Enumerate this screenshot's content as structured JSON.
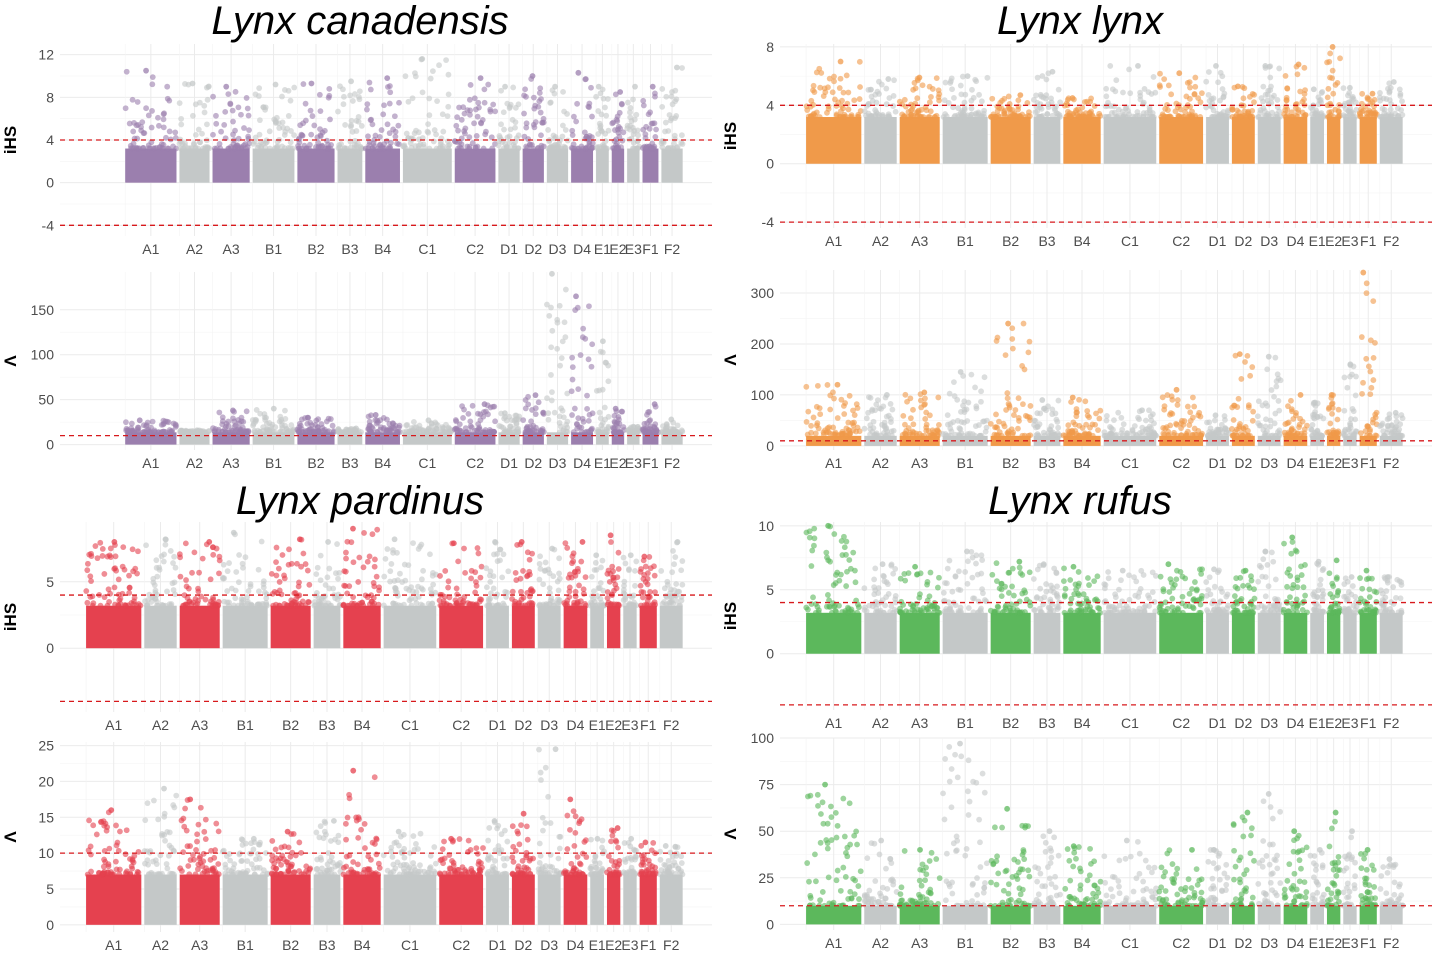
{
  "species": [
    {
      "id": "canadensis",
      "title": "Lynx canadensis",
      "color": "#9b7fae"
    },
    {
      "id": "lynx",
      "title": "Lynx lynx",
      "color": "#f09a4a"
    },
    {
      "id": "pardinus",
      "title": "Lynx pardinus",
      "color": "#e5414f"
    },
    {
      "id": "rufus",
      "title": "Lynx rufus",
      "color": "#5cb85c"
    }
  ],
  "colors": {
    "alternate": "#c4c8c8",
    "threshold": "#d7191c",
    "grid": "#ebebeb"
  },
  "chart_data": [
    {
      "type": "scatter",
      "species": "Lynx canadensis",
      "ylabel": "iHS",
      "xtick_labels": [
        "A1",
        "A2",
        "A3",
        "B1",
        "B2",
        "B3",
        "B4",
        "C1",
        "C2",
        "D1",
        "D2",
        "D3",
        "D4",
        "E1",
        "E2",
        "E3",
        "F1",
        "F2"
      ],
      "ylim": [
        -5,
        13
      ],
      "yticks": [
        -4,
        0,
        4,
        8,
        12
      ],
      "thresholds": [
        4,
        -4
      ],
      "chrom_max": [
        10.5,
        9.3,
        9.0,
        9.2,
        9.3,
        9.5,
        9.8,
        11.6,
        9.8,
        9.0,
        10.0,
        9.0,
        10.3,
        9.0,
        8.5,
        9.0,
        9.0,
        10.8
      ],
      "grid": true
    },
    {
      "type": "scatter",
      "species": "Lynx canadensis",
      "ylabel": "Λ",
      "xtick_labels": [
        "A1",
        "A2",
        "A3",
        "B1",
        "B2",
        "B3",
        "B4",
        "C1",
        "C2",
        "D1",
        "D2",
        "D3",
        "D4",
        "E1",
        "E2",
        "E3",
        "F1",
        "F2"
      ],
      "ylim": [
        -6,
        192
      ],
      "yticks": [
        0,
        50,
        100,
        150
      ],
      "thresholds": [
        10
      ],
      "chrom_max": [
        27,
        16,
        38,
        40,
        30,
        18,
        33,
        27,
        45,
        35,
        55,
        190,
        165,
        115,
        40,
        20,
        45,
        28
      ],
      "grid": true
    },
    {
      "type": "scatter",
      "species": "Lynx lynx",
      "ylabel": "iHS",
      "xtick_labels": [
        "A1",
        "A2",
        "A3",
        "B1",
        "B2",
        "B3",
        "B4",
        "C1",
        "C2",
        "D1",
        "D2",
        "D3",
        "D4",
        "E1",
        "E2",
        "E3",
        "F1",
        "F2"
      ],
      "ylim": [
        -4.4,
        8.2
      ],
      "yticks": [
        -4,
        0,
        4,
        8
      ],
      "thresholds": [
        4,
        -4
      ],
      "chrom_max": [
        7.0,
        5.8,
        5.9,
        6.0,
        4.7,
        6.3,
        4.5,
        6.7,
        6.2,
        6.7,
        5.3,
        6.7,
        6.8,
        5.1,
        8.0,
        5.2,
        4.8,
        5.6
      ],
      "grid": true
    },
    {
      "type": "scatter",
      "species": "Lynx lynx",
      "ylabel": "Λ",
      "xtick_labels": [
        "A1",
        "A2",
        "A3",
        "B1",
        "B2",
        "B3",
        "B4",
        "C1",
        "C2",
        "D1",
        "D2",
        "D3",
        "D4",
        "E1",
        "E2",
        "E3",
        "F1",
        "F2"
      ],
      "ylim": [
        -8,
        345
      ],
      "yticks": [
        0,
        100,
        200,
        300
      ],
      "thresholds": [
        10
      ],
      "chrom_max": [
        120,
        100,
        105,
        145,
        240,
        90,
        95,
        70,
        110,
        60,
        180,
        175,
        100,
        85,
        100,
        160,
        340,
        65
      ],
      "grid": true
    },
    {
      "type": "scatter",
      "species": "Lynx pardinus",
      "ylabel": "iHS",
      "xtick_labels": [
        "A1",
        "A2",
        "A3",
        "B1",
        "B2",
        "B3",
        "B4",
        "C1",
        "C2",
        "D1",
        "D2",
        "D3",
        "D4",
        "E1",
        "E2",
        "E3",
        "F1",
        "F2"
      ],
      "ylim": [
        -4.8,
        9.5
      ],
      "yticks": [
        0,
        5
      ],
      "thresholds": [
        4,
        -4
      ],
      "chrom_max": [
        8.0,
        8.2,
        8.0,
        8.7,
        8.2,
        8.0,
        9.0,
        8.2,
        7.9,
        8.0,
        8.0,
        7.5,
        8.0,
        7.0,
        8.5,
        7.0,
        6.9,
        8.0
      ],
      "grid": true
    },
    {
      "type": "scatter",
      "species": "Lynx pardinus",
      "ylabel": "Λ",
      "xtick_labels": [
        "A1",
        "A2",
        "A3",
        "B1",
        "B2",
        "B3",
        "B4",
        "C1",
        "C2",
        "D1",
        "D2",
        "D3",
        "D4",
        "E1",
        "E2",
        "E3",
        "F1",
        "F2"
      ],
      "ylim": [
        -1,
        25.5
      ],
      "yticks": [
        0,
        5,
        10,
        15,
        20,
        25
      ],
      "thresholds": [
        10
      ],
      "chrom_max": [
        16,
        19,
        17.5,
        12,
        13,
        14.5,
        21.5,
        13,
        12,
        14.5,
        15.5,
        24.5,
        17.5,
        12,
        13.5,
        12,
        11.5,
        11
      ],
      "grid": true
    },
    {
      "type": "scatter",
      "species": "Lynx rufus",
      "ylabel": "iHS",
      "xtick_labels": [
        "A1",
        "A2",
        "A3",
        "B1",
        "B2",
        "B3",
        "B4",
        "C1",
        "C2",
        "D1",
        "D2",
        "D3",
        "D4",
        "E1",
        "E2",
        "E3",
        "F1",
        "F2"
      ],
      "ylim": [
        -4.4,
        10.3
      ],
      "yticks": [
        0,
        5,
        10
      ],
      "thresholds": [
        4,
        -4
      ],
      "chrom_max": [
        10.0,
        7.0,
        6.8,
        8.0,
        7.2,
        7.0,
        6.8,
        6.5,
        7.0,
        6.6,
        6.5,
        8.0,
        9.1,
        7.2,
        7.3,
        6.0,
        6.5,
        6.0
      ],
      "grid": true
    },
    {
      "type": "scatter",
      "species": "Lynx rufus",
      "ylabel": "Λ",
      "xtick_labels": [
        "A1",
        "A2",
        "A3",
        "B1",
        "B2",
        "B3",
        "B4",
        "C1",
        "C2",
        "D1",
        "D2",
        "D3",
        "D4",
        "E1",
        "E2",
        "E3",
        "F1",
        "F2"
      ],
      "ylim": [
        -3,
        100
      ],
      "yticks": [
        0,
        25,
        50,
        75,
        100
      ],
      "thresholds": [
        10
      ],
      "chrom_max": [
        75,
        45,
        40,
        97,
        62,
        50,
        42,
        45,
        40,
        40,
        60,
        70,
        50,
        40,
        60,
        50,
        40,
        35
      ],
      "grid": true
    }
  ]
}
